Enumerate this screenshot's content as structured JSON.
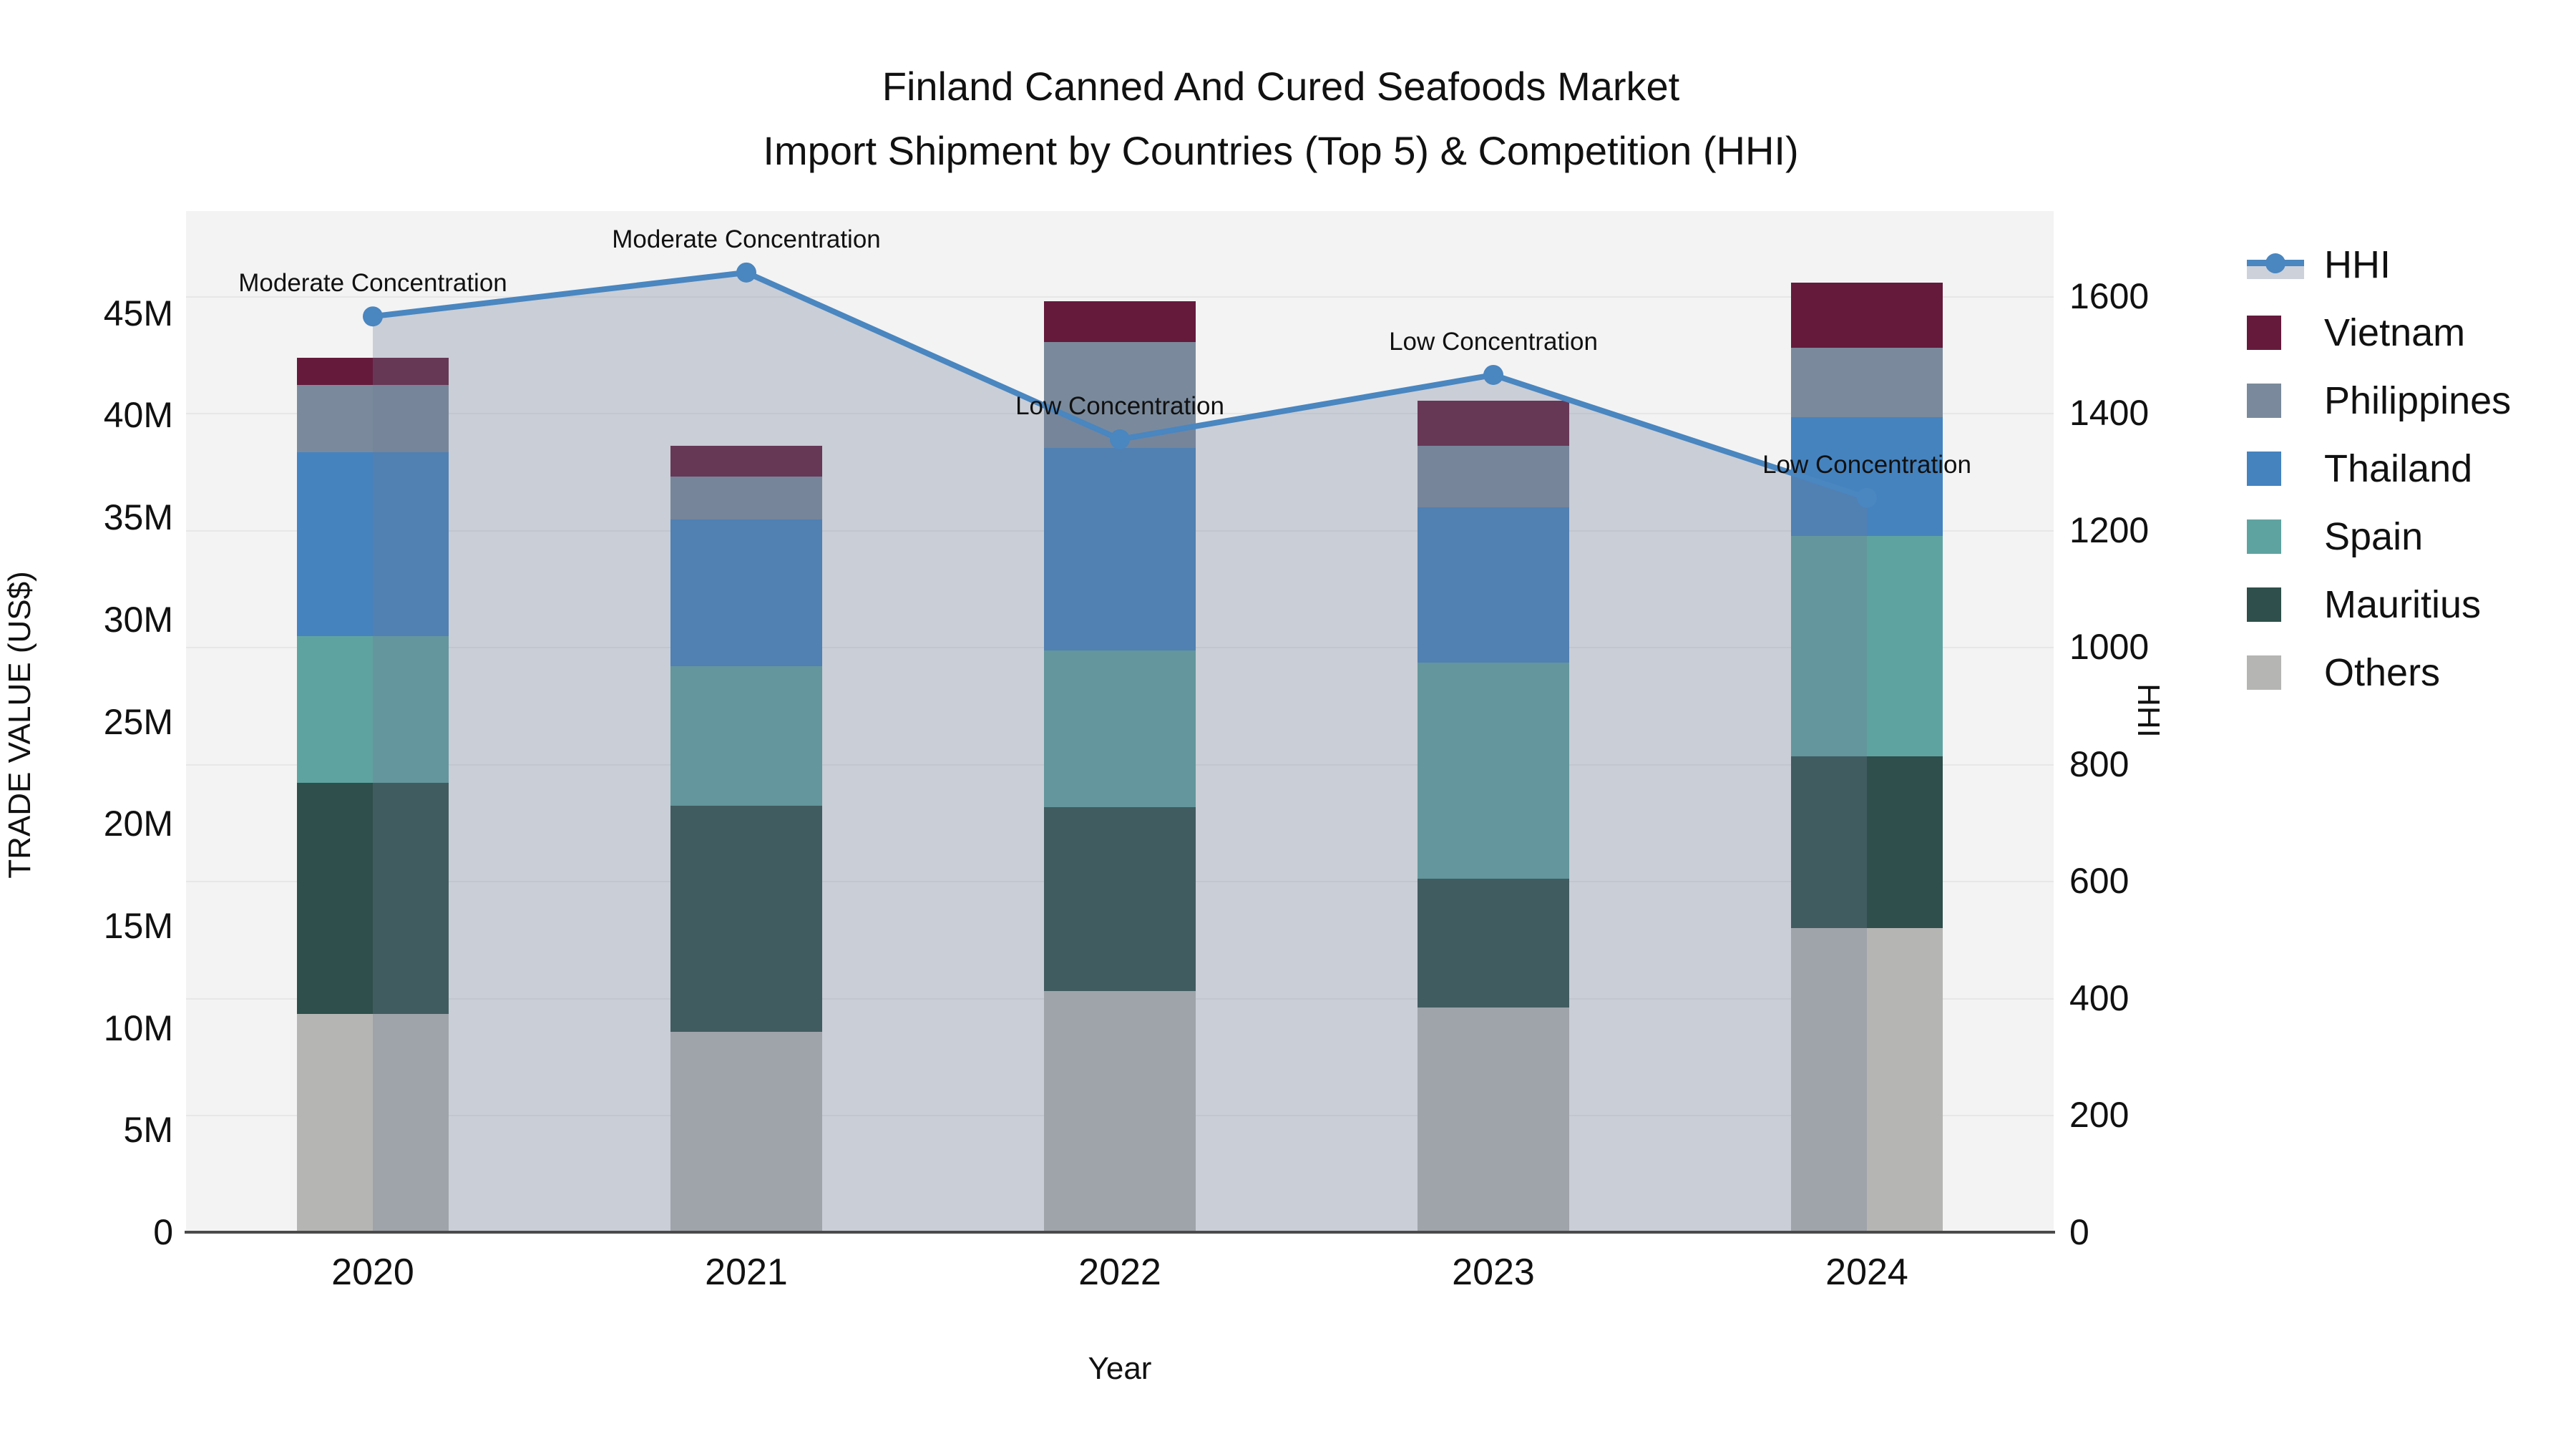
{
  "title": {
    "line1": "Finland Canned And Cured Seafoods Market",
    "line2": "Import Shipment by Countries (Top 5) & Competition (HHI)"
  },
  "axes": {
    "left": {
      "title": "TRADE VALUE (US$)",
      "tick_labels": [
        "0",
        "5M",
        "10M",
        "15M",
        "20M",
        "25M",
        "30M",
        "35M",
        "40M",
        "45M"
      ],
      "tick_values": [
        0,
        5,
        10,
        15,
        20,
        25,
        30,
        35,
        40,
        45
      ],
      "max": 50
    },
    "right": {
      "title": "HHI",
      "tick_labels": [
        "0",
        "200",
        "400",
        "600",
        "800",
        "1000",
        "1200",
        "1400",
        "1600"
      ],
      "tick_values": [
        0,
        200,
        400,
        600,
        800,
        1000,
        1200,
        1400,
        1600
      ],
      "max": 1745
    },
    "x": {
      "title": "Year",
      "labels": [
        "2020",
        "2021",
        "2022",
        "2023",
        "2024"
      ]
    }
  },
  "legend": [
    {
      "label": "HHI",
      "type": "line",
      "color": "#4a86c0"
    },
    {
      "label": "Vietnam",
      "type": "swatch",
      "color": "#651a3c"
    },
    {
      "label": "Philippines",
      "type": "swatch",
      "color": "#7a8a9c"
    },
    {
      "label": "Thailand",
      "type": "swatch",
      "color": "#4583bf"
    },
    {
      "label": "Spain",
      "type": "swatch",
      "color": "#5fa3a1"
    },
    {
      "label": "Mauritius",
      "type": "swatch",
      "color": "#2e4f4b"
    },
    {
      "label": "Others",
      "type": "swatch",
      "color": "#b5b5b4"
    }
  ],
  "chart_data": {
    "type": "bar",
    "stacked": true,
    "title": "Finland Canned And Cured Seafoods Market — Import Shipment by Countries (Top 5) & Competition (HHI)",
    "categories": [
      "2020",
      "2021",
      "2022",
      "2023",
      "2024"
    ],
    "unit": "million US$",
    "xlabel": "Year",
    "ylabel": "TRADE VALUE (US$)",
    "ylim": [
      0,
      50
    ],
    "grid": "horizontal",
    "legend_position": "right",
    "series": [
      {
        "name": "Others",
        "color": "#b5b5b4",
        "values": [
          10.7,
          9.8,
          11.8,
          11.0,
          14.9
        ]
      },
      {
        "name": "Mauritius",
        "color": "#2e4f4b",
        "values": [
          11.3,
          11.1,
          9.0,
          6.3,
          8.4
        ]
      },
      {
        "name": "Spain",
        "color": "#5fa3a1",
        "values": [
          7.2,
          6.8,
          7.7,
          10.6,
          10.8
        ]
      },
      {
        "name": "Thailand",
        "color": "#4583bf",
        "values": [
          9.0,
          7.2,
          9.9,
          7.6,
          5.8
        ]
      },
      {
        "name": "Philippines",
        "color": "#7a8a9c",
        "values": [
          3.3,
          2.1,
          5.2,
          3.0,
          3.4
        ]
      },
      {
        "name": "Vietnam",
        "color": "#651a3c",
        "values": [
          1.3,
          1.5,
          2.0,
          2.2,
          3.2
        ]
      }
    ],
    "bar_totals": [
      42.8,
      38.5,
      45.6,
      40.7,
      46.5
    ],
    "line_series": {
      "name": "HHI",
      "axis": "right",
      "ylabel": "HHI",
      "ylim": [
        0,
        1745
      ],
      "color": "#4a86c0",
      "area_fill": "rgba(108,122,148,0.30)",
      "values": [
        1565,
        1640,
        1355,
        1465,
        1255
      ],
      "annotations": [
        "Moderate Concentration",
        "Moderate Concentration",
        "Low Concentration",
        "Low Concentration",
        "Low Concentration"
      ]
    }
  },
  "colors": {
    "plot_background": "#f3f3f3",
    "gridline": "#e7e7e7",
    "axis_line": "#4a4a4a",
    "text": "#111111",
    "hhi_line": "#4a86c0",
    "hhi_area_on_bg": "#cbd0d7"
  }
}
